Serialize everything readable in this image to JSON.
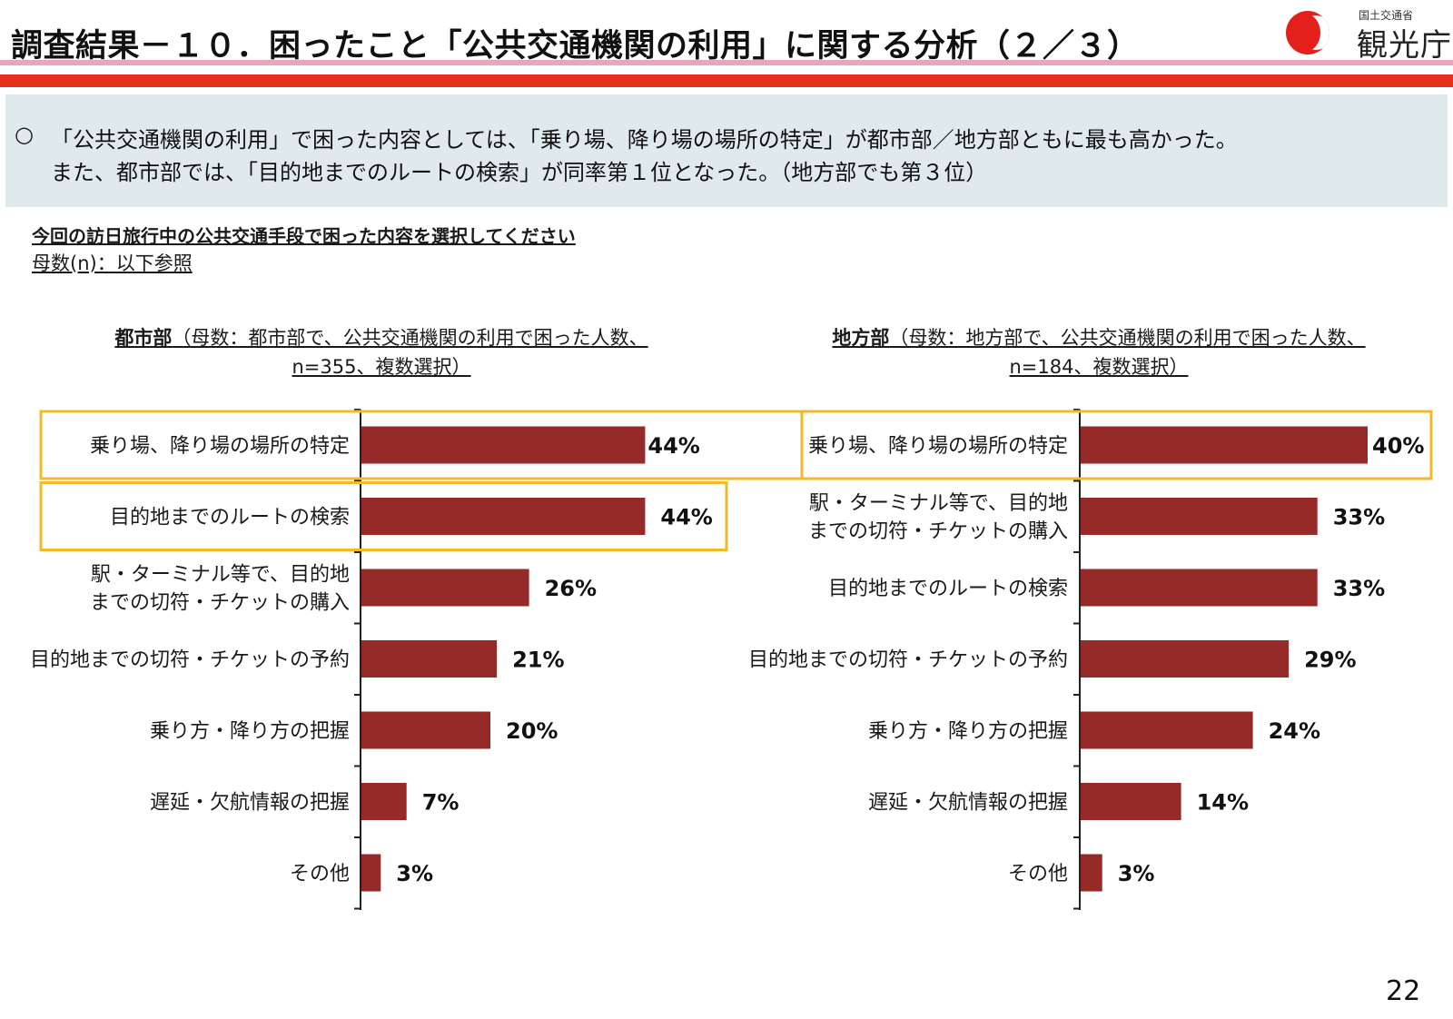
{
  "header": {
    "title": "調査結果－１０．困ったこと「公共交通機関の利用」に関する分析（２／３）",
    "logo_ministry": "国土交通省",
    "logo_agency": "観光庁"
  },
  "summary": {
    "bullet": "○",
    "line1": "「公共交通機関の利用」で困った内容としては、「乗り場、降り場の場所の特定」が都市部／地方部ともに最も高かった。",
    "line2": "また、都市部では、「目的地までのルートの検索」が同率第１位となった。（地方部でも第３位）"
  },
  "question": "今回の訪日旅行中の公共交通手段で困った内容を選択してください",
  "base_note": "母数(n)：以下参照",
  "colors": {
    "bar": "#962a28",
    "highlight": "#f2b92b",
    "axis": "#222222"
  },
  "chart_data": [
    {
      "type": "bar",
      "orientation": "horizontal",
      "title_bold": "都市部",
      "title_rest": "（母数：都市部で、公共交通機関の利用で困った人数、",
      "title_line2": "n=355、複数選択）",
      "categories": [
        [
          "乗り場、降り場の場所の特定"
        ],
        [
          "目的地までのルートの検索"
        ],
        [
          "駅・ターミナル等で、目的地",
          "までの切符・チケットの購入"
        ],
        [
          "目的地までの切符・チケットの予約"
        ],
        [
          "乗り方・降り方の把握"
        ],
        [
          "遅延・欠航情報の把握"
        ],
        [
          "その他"
        ]
      ],
      "values": [
        44,
        44,
        26,
        21,
        20,
        7,
        3
      ],
      "value_labels": [
        "44%",
        "44%",
        "26%",
        "21%",
        "20%",
        "7%",
        "3%"
      ],
      "unit": "%",
      "highlighted": [
        0,
        1
      ]
    },
    {
      "type": "bar",
      "orientation": "horizontal",
      "title_bold": "地方部",
      "title_rest": "（母数：地方部で、公共交通機関の利用で困った人数、",
      "title_line2": "n=184、複数選択）",
      "categories": [
        [
          "乗り場、降り場の場所の特定"
        ],
        [
          "駅・ターミナル等で、目的地",
          "までの切符・チケットの購入"
        ],
        [
          "目的地までのルートの検索"
        ],
        [
          "目的地までの切符・チケットの予約"
        ],
        [
          "乗り方・降り方の把握"
        ],
        [
          "遅延・欠航情報の把握"
        ],
        [
          "その他"
        ]
      ],
      "values": [
        40,
        33,
        33,
        29,
        24,
        14,
        3
      ],
      "value_labels": [
        "40%",
        "33%",
        "33%",
        "29%",
        "24%",
        "14%",
        "3%"
      ],
      "unit": "%",
      "highlighted": [
        0
      ]
    }
  ],
  "page_number": "22"
}
